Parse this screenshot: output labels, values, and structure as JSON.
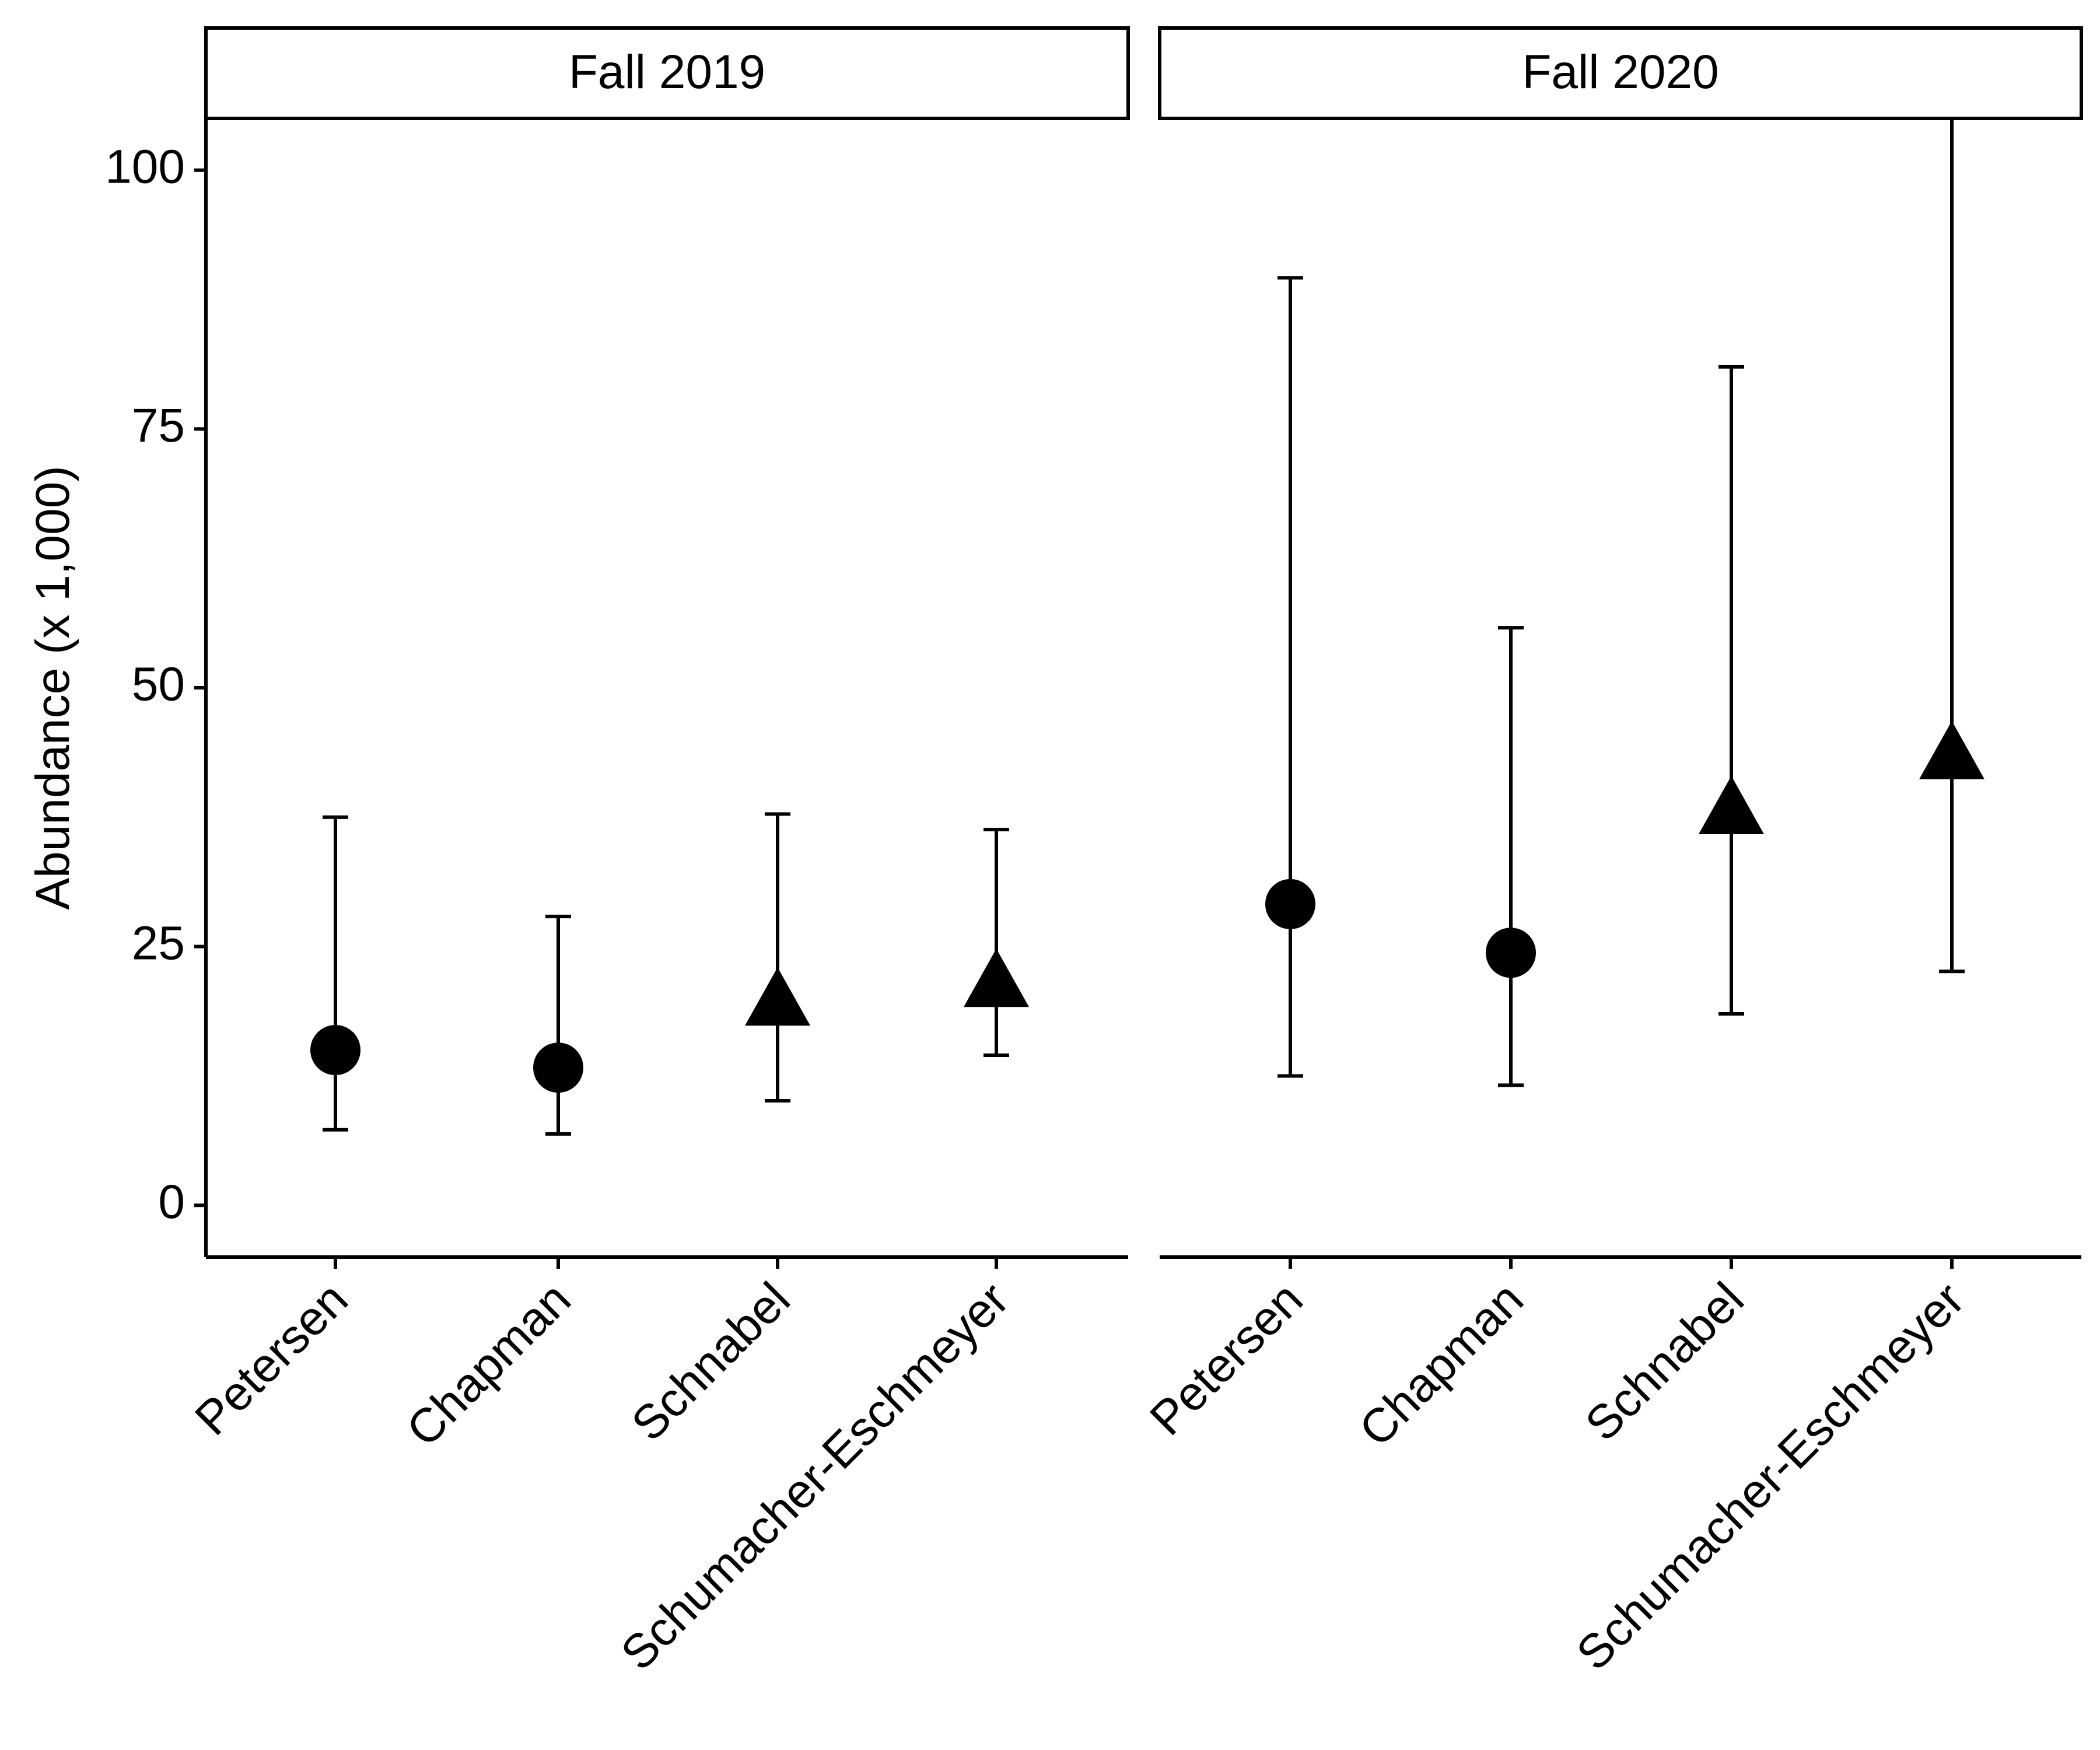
{
  "chart_data": {
    "type": "scatter",
    "title": "",
    "ylabel": "Abundance (x 1,000)",
    "xlabel": "",
    "ylim": [
      -5,
      105
    ],
    "yticks": [
      0,
      25,
      50,
      75,
      100
    ],
    "grid": false,
    "legend": "none",
    "categories": [
      "Petersen",
      "Chapman",
      "Schnabel",
      "Schumacher-Eschmeyer"
    ],
    "marker_shapes": {
      "Petersen": "circle",
      "Chapman": "circle",
      "Schnabel": "triangle",
      "Schumacher-Eschmeyer": "triangle"
    },
    "color": "#000000",
    "panels": [
      {
        "label": "Fall 2019",
        "points": [
          {
            "method": "Petersen",
            "estimate": 15.0,
            "lower": 7.3,
            "upper": 37.5
          },
          {
            "method": "Chapman",
            "estimate": 13.3,
            "lower": 6.9,
            "upper": 27.9
          },
          {
            "method": "Schnabel",
            "estimate": 19.5,
            "lower": 10.1,
            "upper": 37.8
          },
          {
            "method": "Schumacher-Eschmeyer",
            "estimate": 21.3,
            "lower": 14.5,
            "upper": 36.3
          }
        ]
      },
      {
        "label": "Fall 2020",
        "points": [
          {
            "method": "Petersen",
            "estimate": 29.1,
            "lower": 12.5,
            "upper": 89.6
          },
          {
            "method": "Chapman",
            "estimate": 24.4,
            "lower": 11.6,
            "upper": 55.8
          },
          {
            "method": "Schnabel",
            "estimate": 38.0,
            "lower": 18.5,
            "upper": 81.0
          },
          {
            "method": "Schumacher-Eschmeyer",
            "estimate": 43.3,
            "lower": 22.6,
            "upper": 105
          }
        ]
      }
    ]
  }
}
